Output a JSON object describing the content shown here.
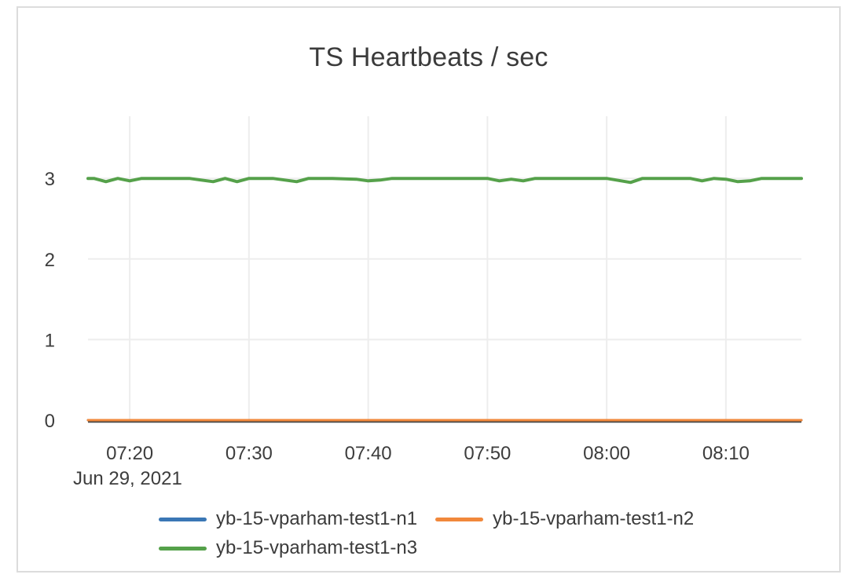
{
  "page": {
    "background": "#ffffff",
    "card_border_color": "#dcdcdc"
  },
  "chart_data": {
    "type": "line",
    "title": "TS Heartbeats / sec",
    "x_axis": {
      "date_label": "Jun 29, 2021",
      "tick_labels": [
        "07:20",
        "07:30",
        "07:40",
        "07:50",
        "08:00",
        "08:10"
      ],
      "range": [
        "07:16:30",
        "08:16:20"
      ]
    },
    "y_axis": {
      "ticks": [
        0,
        1,
        2,
        3
      ],
      "range": [
        0,
        3.77
      ]
    },
    "grid": true,
    "legend_position": "bottom",
    "colors": {
      "grid_line": "#ededed",
      "axis_line": "#474747",
      "tick_text": "#3d3d3d"
    },
    "series": [
      {
        "name": "yb-15-vparham-test1-n1",
        "color": "#3a77b5",
        "width": 3,
        "points": [
          [
            "07:16:30",
            0
          ],
          [
            "08:16:20",
            0
          ]
        ]
      },
      {
        "name": "yb-15-vparham-test1-n2",
        "color": "#f1883b",
        "width": 3,
        "points": [
          [
            "07:16:30",
            0
          ],
          [
            "08:16:20",
            0
          ]
        ]
      },
      {
        "name": "yb-15-vparham-test1-n3",
        "color": "#55a14a",
        "width": 4,
        "points": [
          [
            "07:16:30",
            3
          ],
          [
            "07:17",
            3
          ],
          [
            "07:18",
            2.96
          ],
          [
            "07:19",
            3
          ],
          [
            "07:20",
            2.97
          ],
          [
            "07:21",
            3
          ],
          [
            "07:23",
            3
          ],
          [
            "07:25",
            3
          ],
          [
            "07:27",
            2.96
          ],
          [
            "07:28",
            3
          ],
          [
            "07:29",
            2.96
          ],
          [
            "07:30",
            3
          ],
          [
            "07:32",
            3
          ],
          [
            "07:34",
            2.96
          ],
          [
            "07:35",
            3
          ],
          [
            "07:37",
            3
          ],
          [
            "07:39",
            2.99
          ],
          [
            "07:40",
            2.97
          ],
          [
            "07:41",
            2.98
          ],
          [
            "07:42",
            3
          ],
          [
            "07:44",
            3
          ],
          [
            "07:46",
            3
          ],
          [
            "07:48",
            3
          ],
          [
            "07:50",
            3
          ],
          [
            "07:51",
            2.97
          ],
          [
            "07:52",
            2.99
          ],
          [
            "07:53",
            2.97
          ],
          [
            "07:54",
            3
          ],
          [
            "07:56",
            3
          ],
          [
            "07:58",
            3
          ],
          [
            "08:00",
            3
          ],
          [
            "08:02",
            2.95
          ],
          [
            "08:03",
            3
          ],
          [
            "08:05",
            3
          ],
          [
            "08:07",
            3
          ],
          [
            "08:08",
            2.97
          ],
          [
            "08:09",
            3
          ],
          [
            "08:10",
            2.99
          ],
          [
            "08:11",
            2.96
          ],
          [
            "08:12",
            2.97
          ],
          [
            "08:13",
            3
          ],
          [
            "08:15",
            3
          ],
          [
            "08:16:20",
            3
          ]
        ]
      }
    ]
  }
}
